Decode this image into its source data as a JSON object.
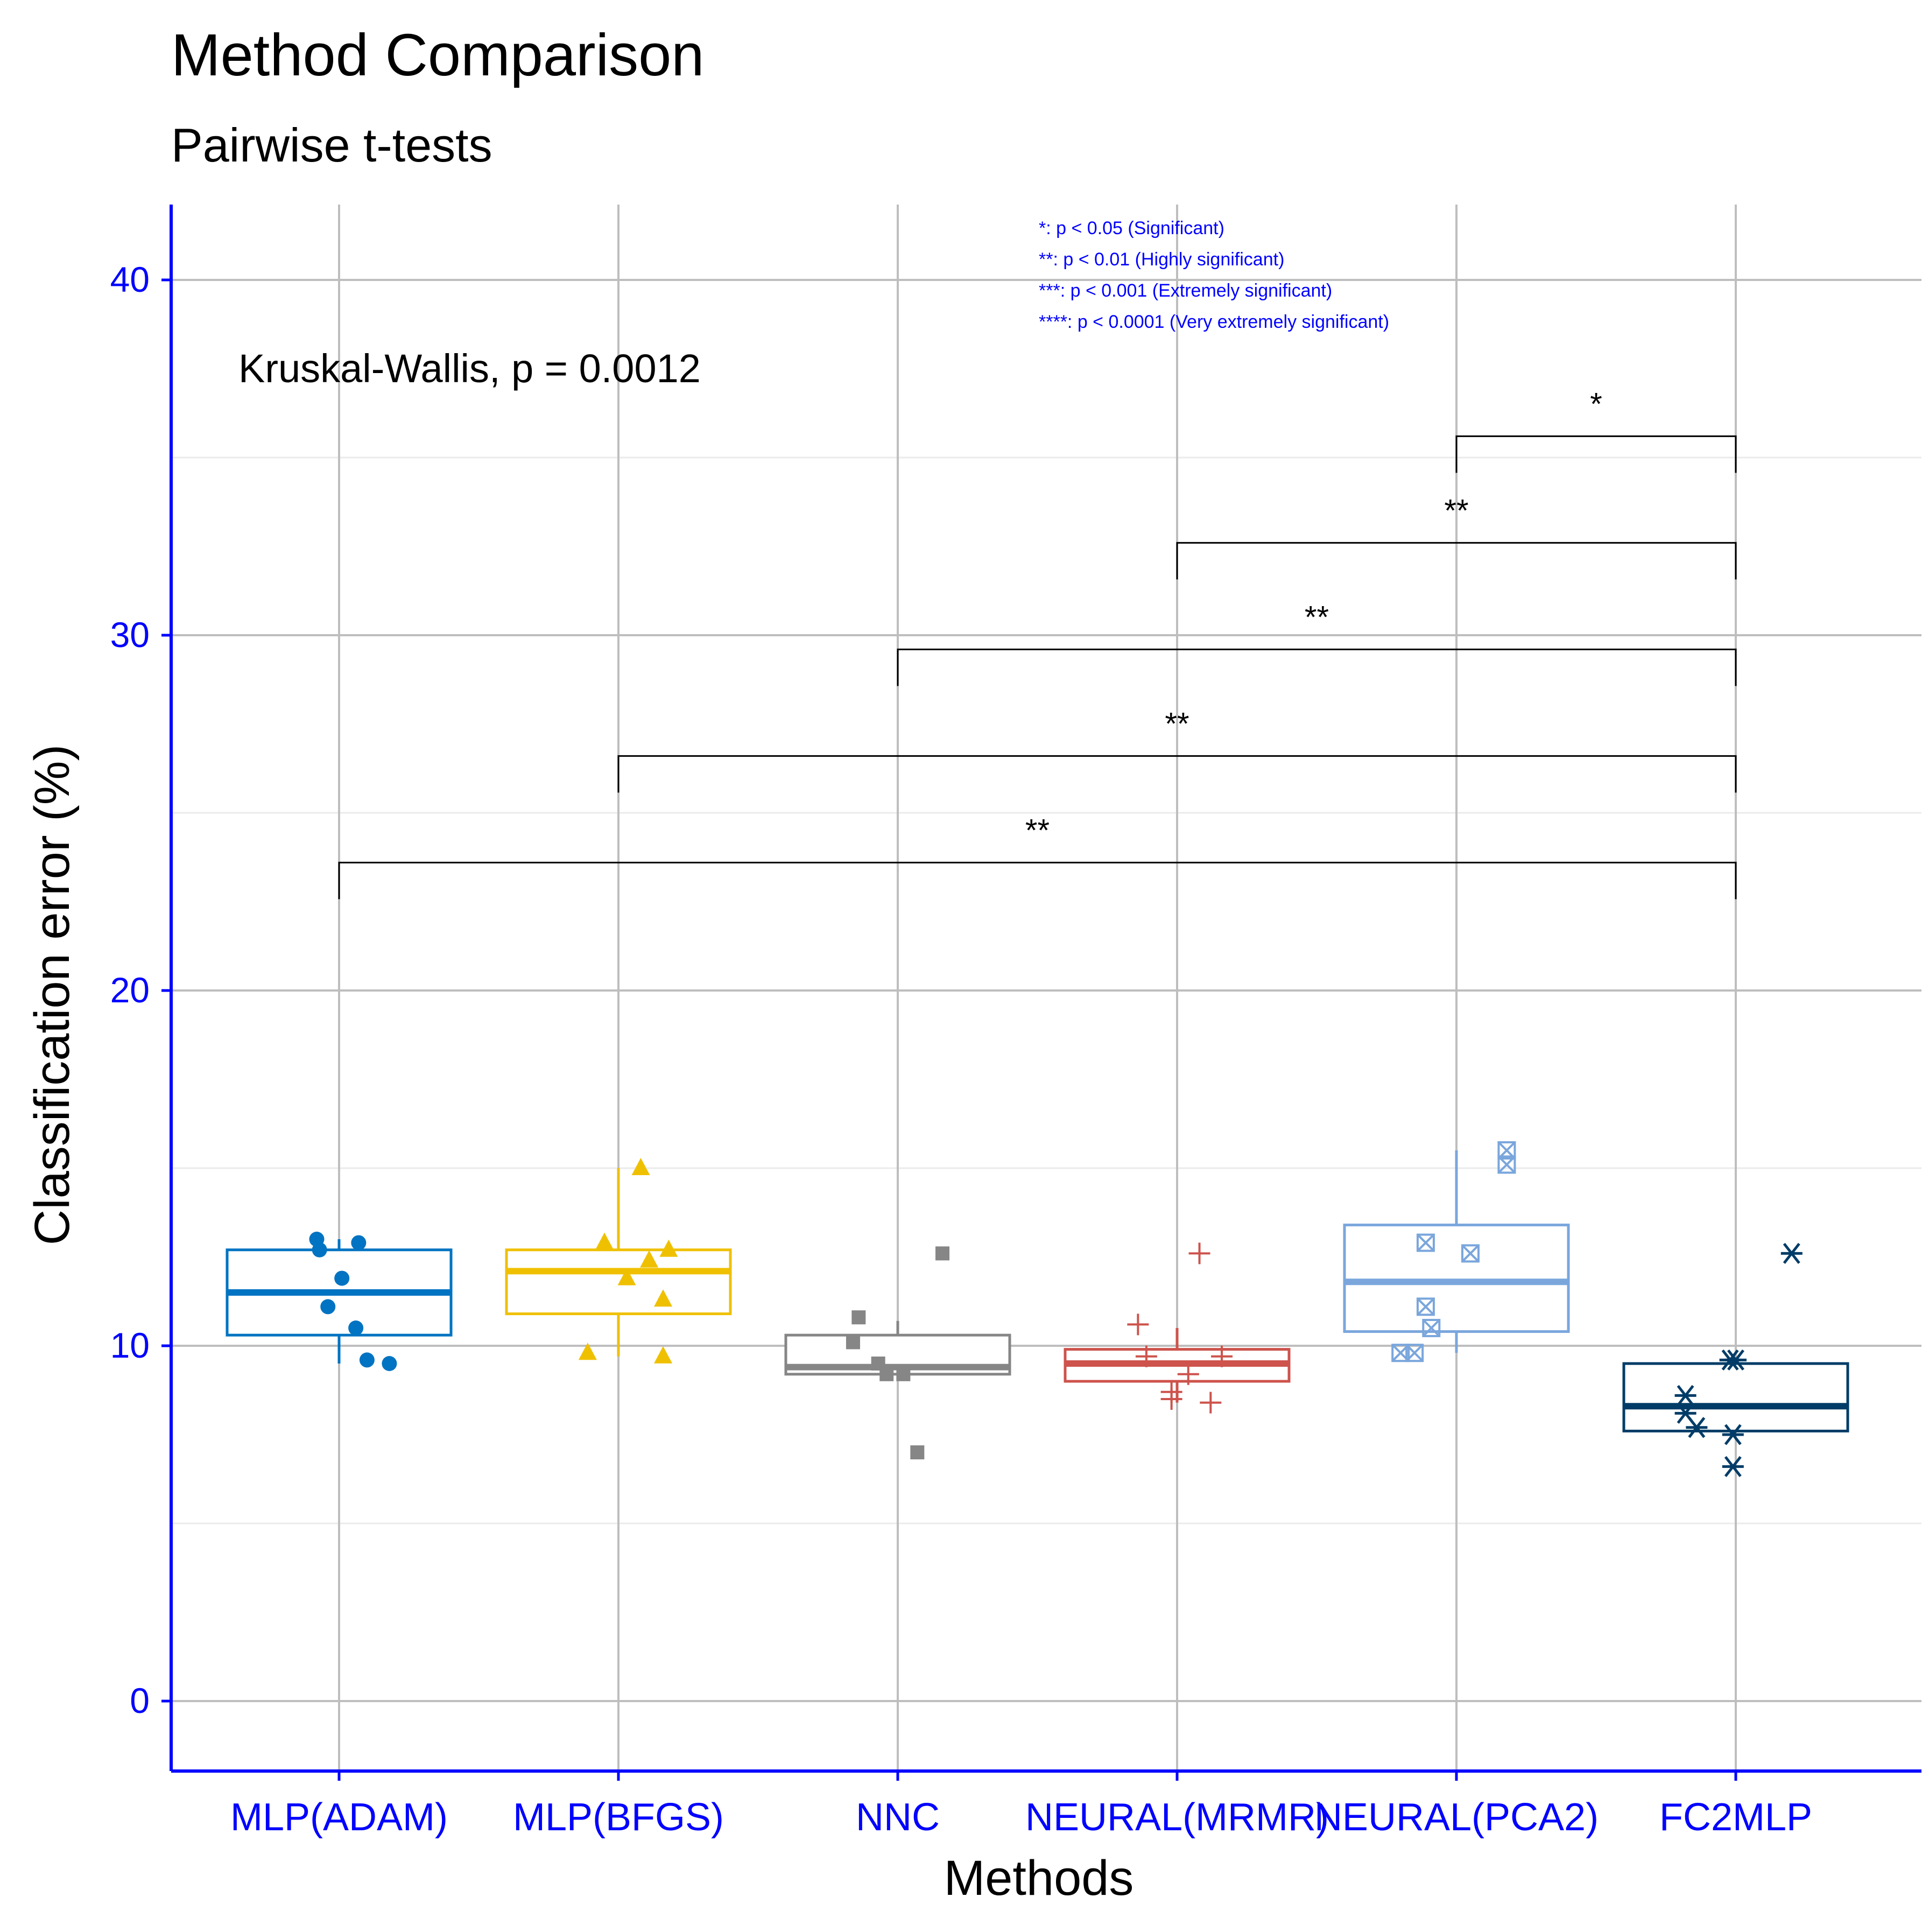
{
  "chart_data": {
    "type": "box",
    "title": "Method Comparison",
    "subtitle": "Pairwise t-tests",
    "xlabel": "Methods",
    "ylabel": "Classification error (%)",
    "ylim": [
      -2,
      42
    ],
    "yticks": [
      0,
      10,
      20,
      30,
      40
    ],
    "grid": true,
    "categories": [
      "MLP(ADAM)",
      "MLP(BFGS)",
      "NNC",
      "NEURAL(MRMR)",
      "NEURAL(PCA2)",
      "FC2MLP"
    ],
    "annotation": "Kruskal-Wallis, p = 0.0012",
    "legend_lines": [
      "*: p < 0.05 (Significant)",
      "**: p < 0.01 (Highly significant)",
      "***: p < 0.001 (Extremely significant)",
      "****: p < 0.0001 (Very extremely significant)"
    ],
    "colors": {
      "axis": "#0000ff",
      "grid": "#bebebe",
      "grid_minor": "#ebebeb",
      "bracket": "#000000"
    },
    "series": [
      {
        "category": "MLP(ADAM)",
        "color": "#0073c2",
        "shape": "circle",
        "box": {
          "whisker_low": 9.5,
          "q1": 10.3,
          "median": 11.5,
          "q3": 12.7,
          "whisker_high": 13.0
        },
        "points": [
          [
            -0.08,
            13.0
          ],
          [
            -0.07,
            12.7
          ],
          [
            0.07,
            12.9
          ],
          [
            0.01,
            11.9
          ],
          [
            -0.04,
            11.1
          ],
          [
            0.06,
            10.5
          ],
          [
            0.1,
            9.6
          ],
          [
            0.18,
            9.5
          ]
        ]
      },
      {
        "category": "MLP(BFGS)",
        "color": "#efc000",
        "shape": "triangle",
        "box": {
          "whisker_low": 9.7,
          "q1": 10.9,
          "median": 12.1,
          "q3": 12.7,
          "whisker_high": 15.0
        },
        "points": [
          [
            0.08,
            15.0
          ],
          [
            -0.05,
            12.9
          ],
          [
            0.18,
            12.7
          ],
          [
            0.11,
            12.4
          ],
          [
            0.03,
            11.9
          ],
          [
            0.16,
            11.3
          ],
          [
            -0.11,
            9.8
          ],
          [
            0.16,
            9.7
          ]
        ]
      },
      {
        "category": "NNC",
        "color": "#868686",
        "shape": "square",
        "box": {
          "whisker_low": 9.2,
          "q1": 9.2,
          "median": 9.4,
          "q3": 10.3,
          "whisker_high": 10.7
        },
        "points": [
          [
            0.16,
            12.6
          ],
          [
            -0.14,
            10.8
          ],
          [
            -0.16,
            10.1
          ],
          [
            -0.07,
            9.5
          ],
          [
            -0.04,
            9.2
          ],
          [
            0.02,
            9.2
          ],
          [
            0.07,
            7.0
          ]
        ]
      },
      {
        "category": "NEURAL(MRMR)",
        "color": "#cd534c",
        "shape": "plus",
        "box": {
          "whisker_low": 8.4,
          "q1": 9.0,
          "median": 9.5,
          "q3": 9.9,
          "whisker_high": 10.5
        },
        "points": [
          [
            0.08,
            12.6
          ],
          [
            -0.14,
            10.6
          ],
          [
            -0.11,
            9.7
          ],
          [
            0.16,
            9.7
          ],
          [
            0.04,
            9.2
          ],
          [
            -0.02,
            8.7
          ],
          [
            -0.02,
            8.5
          ],
          [
            0.12,
            8.4
          ]
        ]
      },
      {
        "category": "NEURAL(PCA2)",
        "color": "#7aa6dc",
        "shape": "boxcross",
        "box": {
          "whisker_low": 9.8,
          "q1": 10.4,
          "median": 11.8,
          "q3": 13.4,
          "whisker_high": 15.5
        },
        "points": [
          [
            0.18,
            15.5
          ],
          [
            0.18,
            15.1
          ],
          [
            -0.11,
            12.9
          ],
          [
            0.05,
            12.6
          ],
          [
            -0.11,
            11.1
          ],
          [
            -0.09,
            10.5
          ],
          [
            -0.2,
            9.8
          ],
          [
            -0.15,
            9.8
          ]
        ]
      },
      {
        "category": "FC2MLP",
        "color": "#003c67",
        "shape": "asterisk",
        "box": {
          "whisker_low": 7.6,
          "q1": 7.6,
          "median": 8.3,
          "q3": 9.5,
          "whisker_high": 9.5
        },
        "points": [
          [
            0.2,
            12.6
          ],
          [
            -0.02,
            9.6
          ],
          [
            0,
            9.6
          ],
          [
            -0.18,
            8.6
          ],
          [
            -0.18,
            8.1
          ],
          [
            -0.14,
            7.7
          ],
          [
            -0.01,
            7.5
          ],
          [
            -0.01,
            6.6
          ]
        ]
      }
    ],
    "comparisons": [
      {
        "from": "NEURAL(PCA2)",
        "to": "FC2MLP",
        "y": 35.6,
        "label": "*"
      },
      {
        "from": "NEURAL(MRMR)",
        "to": "FC2MLP",
        "y": 32.6,
        "label": "**"
      },
      {
        "from": "NNC",
        "to": "FC2MLP",
        "y": 29.6,
        "label": "**"
      },
      {
        "from": "MLP(BFGS)",
        "to": "FC2MLP",
        "y": 26.6,
        "label": "**"
      },
      {
        "from": "MLP(ADAM)",
        "to": "FC2MLP",
        "y": 23.6,
        "label": "**"
      }
    ]
  }
}
